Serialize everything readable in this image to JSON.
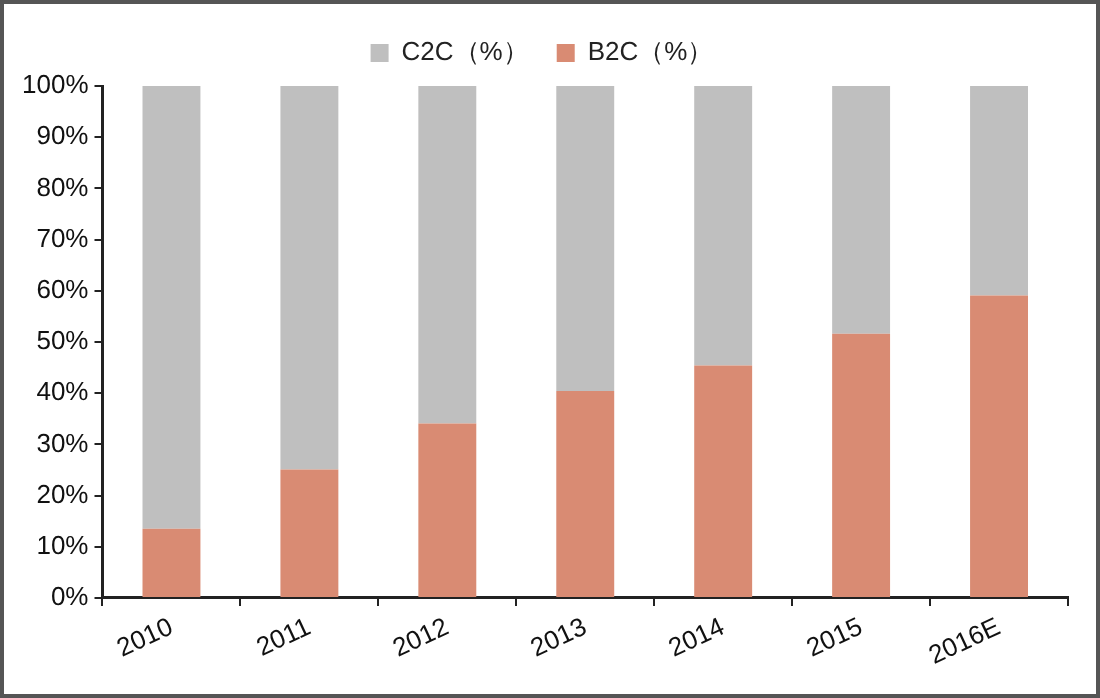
{
  "chart_data": {
    "type": "bar",
    "stacked": true,
    "categories": [
      "2010",
      "2011",
      "2012",
      "2013",
      "2014",
      "2015",
      "2016E"
    ],
    "series": [
      {
        "name": "B2C（%）",
        "color": "#d98b73",
        "values": [
          13.5,
          25.1,
          34.1,
          40.4,
          45.4,
          51.6,
          59.1
        ]
      },
      {
        "name": "C2C（%）",
        "color": "#bfbfbf",
        "values": [
          86.5,
          74.9,
          65.9,
          59.6,
          54.6,
          48.4,
          40.9
        ]
      }
    ],
    "ylim": [
      0,
      100
    ],
    "yticks": [
      {
        "value": 0,
        "label": "0%"
      },
      {
        "value": 10,
        "label": "10%"
      },
      {
        "value": 20,
        "label": "20%"
      },
      {
        "value": 30,
        "label": "30%"
      },
      {
        "value": 40,
        "label": "40%"
      },
      {
        "value": 50,
        "label": "50%"
      },
      {
        "value": 60,
        "label": "60%"
      },
      {
        "value": 70,
        "label": "70%"
      },
      {
        "value": 80,
        "label": "80%"
      },
      {
        "value": 90,
        "label": "90%"
      },
      {
        "value": 100,
        "label": "100%"
      }
    ],
    "grid": false,
    "legend": "top"
  }
}
